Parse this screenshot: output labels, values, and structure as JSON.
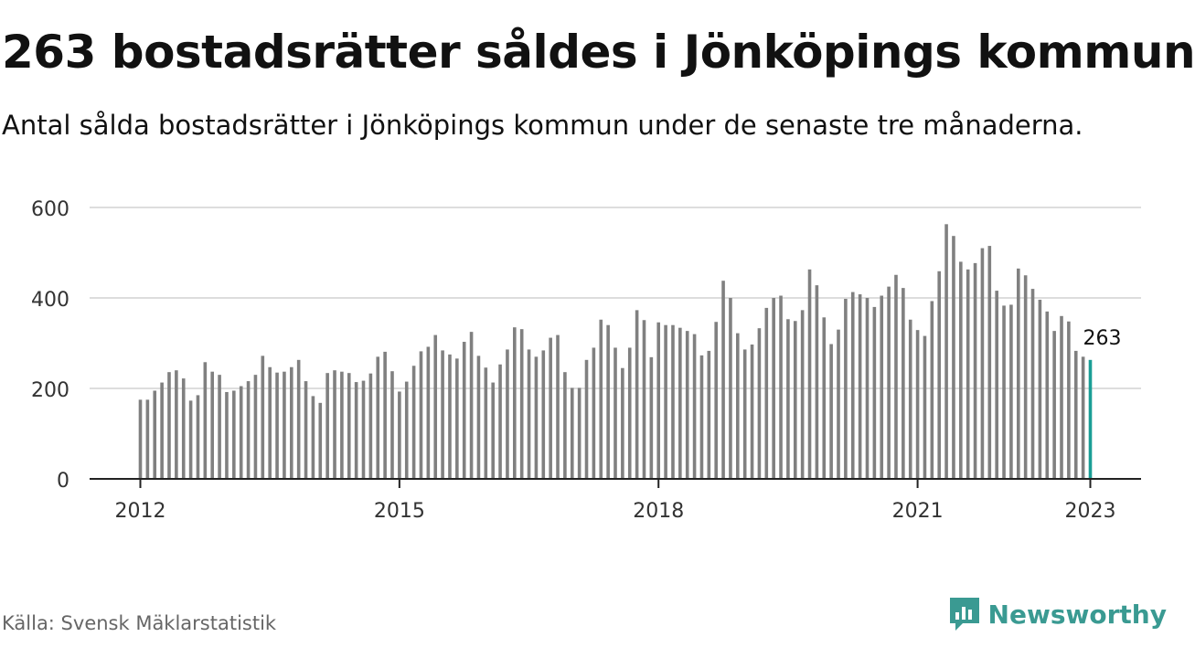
{
  "header": {
    "title": "263 bostadsrätter såldes i Jönköpings kommun",
    "subtitle": "Antal sålda bostadsrätter i Jönköpings kommun under de senaste tre månaderna."
  },
  "footer": {
    "source": "Källa: Svensk Mäklarstatistik",
    "brand": "Newsworthy"
  },
  "colors": {
    "bar": "#808080",
    "highlight": "#1a9e96",
    "grid": "#dddddd",
    "axis": "#222222",
    "brand": "#3a9a92"
  },
  "chart_data": {
    "type": "bar",
    "x_start": "2012-01",
    "x_end": "2023-01",
    "x_ticks": [
      "2012",
      "2015",
      "2018",
      "2021",
      "2023"
    ],
    "y_ticks": [
      0,
      200,
      400,
      600
    ],
    "ylim": [
      0,
      620
    ],
    "grid": true,
    "highlight_label": "263",
    "values": [
      175,
      175,
      195,
      213,
      236,
      240,
      222,
      173,
      185,
      258,
      237,
      230,
      192,
      195,
      205,
      216,
      230,
      272,
      247,
      235,
      237,
      247,
      263,
      216,
      183,
      168,
      234,
      240,
      237,
      234,
      214,
      217,
      233,
      270,
      281,
      238,
      193,
      215,
      250,
      282,
      292,
      318,
      284,
      275,
      266,
      303,
      325,
      272,
      246,
      213,
      253,
      286,
      335,
      331,
      286,
      270,
      284,
      312,
      318,
      236,
      201,
      201,
      263,
      290,
      352,
      340,
      290,
      245,
      290,
      373,
      351,
      269,
      346,
      340,
      340,
      334,
      327,
      320,
      273,
      283,
      347,
      438,
      400,
      322,
      286,
      297,
      333,
      378,
      400,
      405,
      353,
      349,
      373,
      463,
      428,
      357,
      298,
      330,
      398,
      413,
      408,
      400,
      380,
      405,
      425,
      451,
      422,
      352,
      329,
      316,
      393,
      459,
      563,
      537,
      480,
      463,
      477,
      510,
      515,
      416,
      383,
      385,
      465,
      450,
      420,
      396,
      370,
      327,
      360,
      348,
      283,
      270,
      263
    ]
  }
}
